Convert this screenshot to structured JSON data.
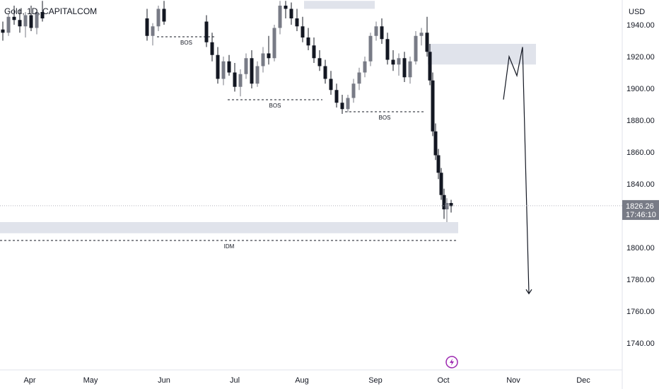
{
  "chart_data": {
    "type": "candlestick",
    "title": "Gold, 1D, CAPITALCOM",
    "currency": "USD",
    "y_ticks": [
      1940,
      1920,
      1900,
      1880,
      1860,
      1840,
      1820,
      1800,
      1780,
      1760,
      1740
    ],
    "y_tick_labels": [
      "1940.00",
      "1920.00",
      "1900.00",
      "1880.00",
      "1860.00",
      "1840.00",
      "1820.00",
      "1800.00",
      "1780.00",
      "1760.00",
      "1740.00"
    ],
    "x_tick_labels": [
      "Apr",
      "May",
      "Jun",
      "Jul",
      "Aug",
      "Sep",
      "Oct",
      "Nov",
      "Dec"
    ],
    "current_price": "1826.26",
    "countdown": "17:46:10",
    "colors": {
      "up": "#787b86",
      "down": "#131722",
      "zone": "#e0e3eb",
      "price_tag": "#787b86",
      "text": "#131722"
    },
    "annotations": [
      {
        "label": "BOS",
        "level": 1932,
        "from": "Jun",
        "to": "Jul"
      },
      {
        "label": "BOS",
        "level": 1893,
        "from": "Jul",
        "to": "Aug"
      },
      {
        "label": "BOS",
        "level": 1885,
        "from": "Aug",
        "to": "Sep"
      },
      {
        "label": "IDM",
        "level": 1808,
        "from": "Mar",
        "to": "Oct"
      }
    ],
    "zones": [
      {
        "from": "Mar",
        "to": "Oct",
        "low": 1809,
        "high": 1816
      },
      {
        "from": "Sep",
        "to": "Nov",
        "low": 1915,
        "high": 1928
      },
      {
        "from": "Aug",
        "to": "Sep",
        "low": 1950,
        "high": 1955
      }
    ],
    "projection_path": [
      {
        "date": "Oct",
        "price": 1893
      },
      {
        "date": "Oct",
        "price": 1920
      },
      {
        "date": "Nov",
        "price": 1908
      },
      {
        "date": "Nov",
        "price": 1926
      },
      {
        "date": "Nov",
        "price": 1771
      }
    ],
    "candles": [
      {
        "o": 1937,
        "h": 1942,
        "l": 1930,
        "c": 1935
      },
      {
        "o": 1935,
        "h": 1947,
        "l": 1933,
        "c": 1945
      },
      {
        "o": 1945,
        "h": 1952,
        "l": 1940,
        "c": 1943
      },
      {
        "o": 1943,
        "h": 1950,
        "l": 1935,
        "c": 1939
      },
      {
        "o": 1939,
        "h": 1948,
        "l": 1932,
        "c": 1946
      },
      {
        "o": 1946,
        "h": 1952,
        "l": 1936,
        "c": 1938
      },
      {
        "o": 1938,
        "h": 1950,
        "l": 1934,
        "c": 1948
      },
      {
        "o": 1948,
        "h": 1955,
        "l": 1942,
        "c": 1944
      },
      {
        "o": 1944,
        "h": 1950,
        "l": 1930,
        "c": 1933
      },
      {
        "o": 1933,
        "h": 1941,
        "l": 1927,
        "c": 1939
      },
      {
        "o": 1939,
        "h": 1952,
        "l": 1936,
        "c": 1950
      },
      {
        "o": 1950,
        "h": 1955,
        "l": 1940,
        "c": 1942
      },
      {
        "o": 1942,
        "h": 1946,
        "l": 1926,
        "c": 1929
      },
      {
        "o": 1929,
        "h": 1935,
        "l": 1917,
        "c": 1921
      },
      {
        "o": 1921,
        "h": 1926,
        "l": 1903,
        "c": 1906
      },
      {
        "o": 1906,
        "h": 1920,
        "l": 1902,
        "c": 1917
      },
      {
        "o": 1917,
        "h": 1921,
        "l": 1908,
        "c": 1910
      },
      {
        "o": 1910,
        "h": 1916,
        "l": 1898,
        "c": 1901
      },
      {
        "o": 1901,
        "h": 1912,
        "l": 1895,
        "c": 1909
      },
      {
        "o": 1909,
        "h": 1922,
        "l": 1906,
        "c": 1919
      },
      {
        "o": 1919,
        "h": 1924,
        "l": 1900,
        "c": 1903
      },
      {
        "o": 1903,
        "h": 1917,
        "l": 1901,
        "c": 1914
      },
      {
        "o": 1914,
        "h": 1926,
        "l": 1910,
        "c": 1922
      },
      {
        "o": 1922,
        "h": 1933,
        "l": 1915,
        "c": 1919
      },
      {
        "o": 1919,
        "h": 1940,
        "l": 1917,
        "c": 1938
      },
      {
        "o": 1938,
        "h": 1955,
        "l": 1934,
        "c": 1952
      },
      {
        "o": 1952,
        "h": 1955,
        "l": 1944,
        "c": 1950
      },
      {
        "o": 1950,
        "h": 1954,
        "l": 1940,
        "c": 1944
      },
      {
        "o": 1944,
        "h": 1950,
        "l": 1936,
        "c": 1939
      },
      {
        "o": 1939,
        "h": 1945,
        "l": 1929,
        "c": 1932
      },
      {
        "o": 1932,
        "h": 1938,
        "l": 1924,
        "c": 1927
      },
      {
        "o": 1927,
        "h": 1932,
        "l": 1916,
        "c": 1919
      },
      {
        "o": 1919,
        "h": 1924,
        "l": 1911,
        "c": 1914
      },
      {
        "o": 1914,
        "h": 1918,
        "l": 1903,
        "c": 1906
      },
      {
        "o": 1906,
        "h": 1911,
        "l": 1896,
        "c": 1899
      },
      {
        "o": 1899,
        "h": 1903,
        "l": 1888,
        "c": 1891
      },
      {
        "o": 1891,
        "h": 1896,
        "l": 1884,
        "c": 1887
      },
      {
        "o": 1887,
        "h": 1896,
        "l": 1885,
        "c": 1894
      },
      {
        "o": 1894,
        "h": 1906,
        "l": 1891,
        "c": 1903
      },
      {
        "o": 1903,
        "h": 1913,
        "l": 1899,
        "c": 1910
      },
      {
        "o": 1910,
        "h": 1920,
        "l": 1907,
        "c": 1917
      },
      {
        "o": 1917,
        "h": 1935,
        "l": 1914,
        "c": 1933
      },
      {
        "o": 1933,
        "h": 1942,
        "l": 1930,
        "c": 1939
      },
      {
        "o": 1939,
        "h": 1944,
        "l": 1928,
        "c": 1931
      },
      {
        "o": 1931,
        "h": 1935,
        "l": 1915,
        "c": 1918
      },
      {
        "o": 1918,
        "h": 1924,
        "l": 1911,
        "c": 1915
      },
      {
        "o": 1915,
        "h": 1922,
        "l": 1908,
        "c": 1919
      },
      {
        "o": 1919,
        "h": 1923,
        "l": 1904,
        "c": 1907
      },
      {
        "o": 1907,
        "h": 1920,
        "l": 1903,
        "c": 1917
      },
      {
        "o": 1917,
        "h": 1936,
        "l": 1915,
        "c": 1933
      },
      {
        "o": 1933,
        "h": 1938,
        "l": 1927,
        "c": 1935
      },
      {
        "o": 1935,
        "h": 1945,
        "l": 1920,
        "c": 1923
      },
      {
        "o": 1923,
        "h": 1928,
        "l": 1902,
        "c": 1905
      },
      {
        "o": 1905,
        "h": 1910,
        "l": 1870,
        "c": 1873
      },
      {
        "o": 1873,
        "h": 1878,
        "l": 1855,
        "c": 1858
      },
      {
        "o": 1858,
        "h": 1862,
        "l": 1843,
        "c": 1847
      },
      {
        "o": 1847,
        "h": 1850,
        "l": 1830,
        "c": 1833
      },
      {
        "o": 1833,
        "h": 1837,
        "l": 1818,
        "c": 1824
      },
      {
        "o": 1824,
        "h": 1831,
        "l": 1816,
        "c": 1828
      },
      {
        "o": 1828,
        "h": 1830,
        "l": 1822,
        "c": 1826
      }
    ]
  }
}
